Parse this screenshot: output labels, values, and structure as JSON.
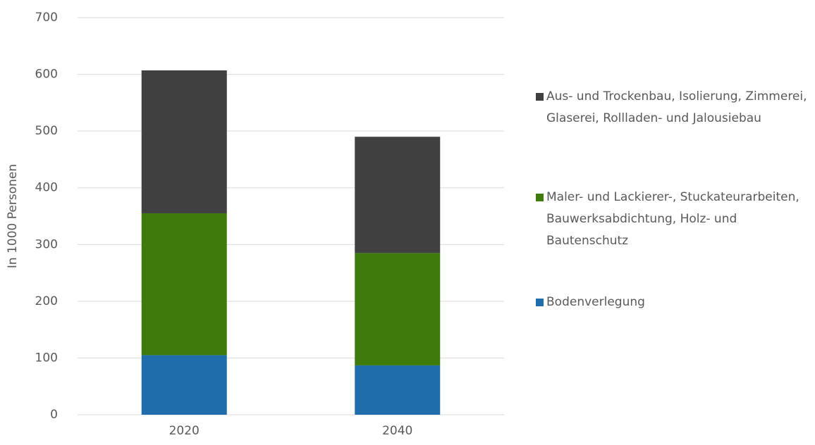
{
  "chart_data": {
    "type": "stacked_bar",
    "y_label": "In 1000 Personen",
    "categories": [
      "2020",
      "2040"
    ],
    "series": [
      {
        "name": "Bodenverlegung",
        "color": "#1f6eab",
        "values": [
          105,
          87
        ]
      },
      {
        "name": "Maler- und Lackierer-, Stuckateurarbeiten, Bauwerksabdichtung, Holz- und Bautenschutz",
        "color": "#3e7b0a",
        "values": [
          250,
          198
        ]
      },
      {
        "name": "Aus- und Trockenbau, Isolierung, Zimmerei, Glaserei, Rollladen- und Jalousiebau",
        "color": "#404040",
        "values": [
          252,
          205
        ]
      }
    ],
    "ylim": [
      0,
      700
    ],
    "yticks": [
      0,
      100,
      200,
      300,
      400,
      500,
      600,
      700
    ],
    "grid": true,
    "legend": "right"
  }
}
